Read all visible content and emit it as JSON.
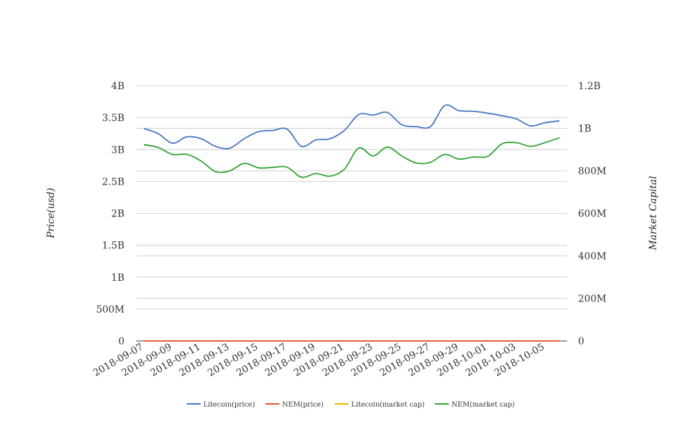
{
  "chart_data": {
    "type": "line",
    "title": "",
    "ylabel": "Price(usd)",
    "y2label": "Market Capital",
    "x_tick_labels": [
      "2018-09-07",
      "2018-09-09",
      "2018-09-11",
      "2018-09-13",
      "2018-09-15",
      "2018-09-17",
      "2018-09-19",
      "2018-09-21",
      "2018-09-23",
      "2018-09-25",
      "2018-09-27",
      "2018-09-29",
      "2018-10-01",
      "2018-10-03",
      "2018-10-05"
    ],
    "x": [
      "2018-09-07",
      "2018-09-08",
      "2018-09-09",
      "2018-09-10",
      "2018-09-11",
      "2018-09-12",
      "2018-09-13",
      "2018-09-14",
      "2018-09-15",
      "2018-09-16",
      "2018-09-17",
      "2018-09-18",
      "2018-09-19",
      "2018-09-20",
      "2018-09-21",
      "2018-09-22",
      "2018-09-23",
      "2018-09-24",
      "2018-09-25",
      "2018-09-26",
      "2018-09-27",
      "2018-09-28",
      "2018-09-29",
      "2018-09-30",
      "2018-10-01",
      "2018-10-02",
      "2018-10-03",
      "2018-10-04",
      "2018-10-05",
      "2018-10-06"
    ],
    "y_ticks": [
      {
        "value": 0,
        "label": "0"
      },
      {
        "value": 500000000,
        "label": "500M"
      },
      {
        "value": 1000000000,
        "label": "1B"
      },
      {
        "value": 1500000000,
        "label": "1.5B"
      },
      {
        "value": 2000000000,
        "label": "2B"
      },
      {
        "value": 2500000000,
        "label": "2.5B"
      },
      {
        "value": 3000000000,
        "label": "3B"
      },
      {
        "value": 3500000000,
        "label": "3.5B"
      },
      {
        "value": 4000000000,
        "label": "4B"
      }
    ],
    "y2_ticks": [
      {
        "value": 0,
        "label": "0"
      },
      {
        "value": 200000000,
        "label": "200M"
      },
      {
        "value": 400000000,
        "label": "400M"
      },
      {
        "value": 600000000,
        "label": "600M"
      },
      {
        "value": 800000000,
        "label": "800M"
      },
      {
        "value": 1000000000,
        "label": "1B"
      },
      {
        "value": 1200000000,
        "label": "1.2B"
      }
    ],
    "ylim": [
      0,
      4000000000
    ],
    "y2lim": [
      0,
      1200000000
    ],
    "grid": true,
    "legend_position": "bottom",
    "series": [
      {
        "name": "Litecoin(price)",
        "axis": "left",
        "color": "#4472c4",
        "values": [
          3330000000,
          3250000000,
          3100000000,
          3200000000,
          3170000000,
          3050000000,
          3020000000,
          3170000000,
          3280000000,
          3300000000,
          3320000000,
          3050000000,
          3150000000,
          3170000000,
          3300000000,
          3550000000,
          3540000000,
          3580000000,
          3390000000,
          3360000000,
          3360000000,
          3690000000,
          3610000000,
          3600000000,
          3570000000,
          3530000000,
          3480000000,
          3370000000,
          3420000000,
          3450000000
        ]
      },
      {
        "name": "NEM(price)",
        "axis": "left",
        "color": "#e0502a",
        "values": [
          0.04,
          0.04,
          0.04,
          0.04,
          0.04,
          0.04,
          0.04,
          0.04,
          0.04,
          0.04,
          0.04,
          0.04,
          0.04,
          0.04,
          0.04,
          0.04,
          0.04,
          0.04,
          0.04,
          0.04,
          0.04,
          0.04,
          0.04,
          0.04,
          0.04,
          0.04,
          0.04,
          0.04,
          0.04,
          0.04
        ]
      },
      {
        "name": "Litecoin(market cap)",
        "axis": "left",
        "color": "#f0b000",
        "values": [
          0,
          0,
          0,
          0,
          0,
          0,
          0,
          0,
          0,
          0,
          0,
          0,
          0,
          0,
          0,
          0,
          0,
          0,
          0,
          0,
          0,
          0,
          0,
          0,
          0,
          0,
          0,
          0,
          0,
          0
        ]
      },
      {
        "name": "NEM(market cap)",
        "axis": "right",
        "color": "#2ca02c",
        "values": [
          923000000,
          910000000,
          877000000,
          877000000,
          846000000,
          796000000,
          800000000,
          835000000,
          814000000,
          816000000,
          817000000,
          770000000,
          787000000,
          775000000,
          808000000,
          907000000,
          870000000,
          912000000,
          870000000,
          837000000,
          840000000,
          877000000,
          855000000,
          865000000,
          868000000,
          927000000,
          932000000,
          915000000,
          933000000,
          955000000
        ]
      }
    ]
  }
}
